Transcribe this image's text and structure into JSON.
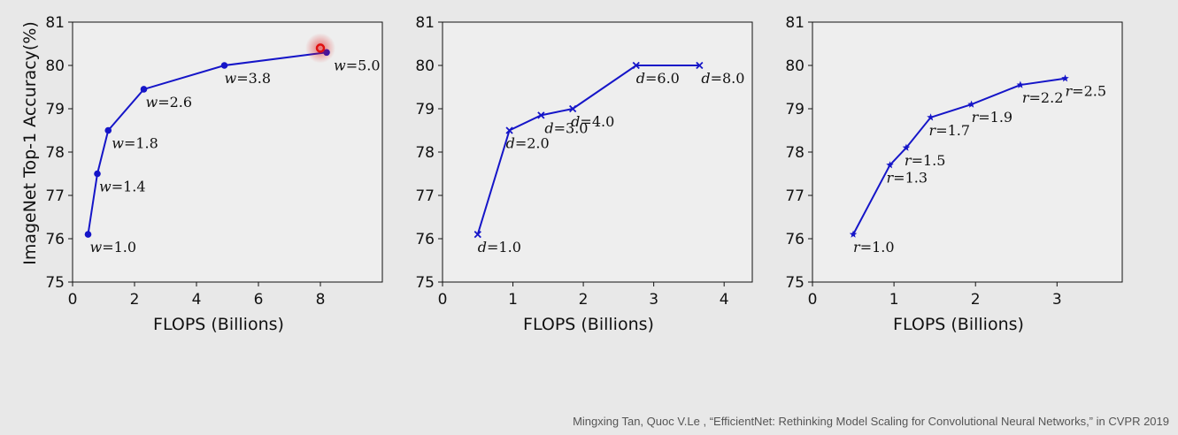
{
  "citation": "Mingxing Tan, Quoc V.Le , “EfficientNet: Rethinking Model Scaling for Convolutional Neural Networks,” in CVPR 2019",
  "colors": {
    "line": "#1515c8",
    "cursor": "#e01010"
  },
  "cursor": {
    "type": "pointer-highlight",
    "x": 8.0,
    "y": 80.4
  },
  "chart_data": [
    {
      "type": "line",
      "xlabel": "FLOPS (Billions)",
      "ylabel": "ImageNet Top-1 Accuracy(%)",
      "xlim": [
        0,
        10
      ],
      "ylim": [
        75,
        81
      ],
      "xticks": [
        "0",
        "2",
        "4",
        "6",
        "8"
      ],
      "yticks": [
        "75",
        "76",
        "77",
        "78",
        "79",
        "80",
        "81"
      ],
      "marker": "circle",
      "series": [
        {
          "x": [
            0.5,
            0.8,
            1.15,
            2.3,
            4.9,
            8.2
          ],
          "y": [
            76.1,
            77.5,
            78.5,
            79.45,
            80.0,
            80.3
          ],
          "labels": [
            {
              "var": "w",
              "val": "=1.0"
            },
            {
              "var": "w",
              "val": "=1.4"
            },
            {
              "var": "w",
              "val": "=1.8"
            },
            {
              "var": "w",
              "val": "=2.6"
            },
            {
              "var": "w",
              "val": "=3.8"
            },
            {
              "var": "w",
              "val": "=5.0"
            }
          ]
        }
      ]
    },
    {
      "type": "line",
      "xlabel": "FLOPS (Billions)",
      "ylabel": "",
      "xlim": [
        0,
        4.4
      ],
      "ylim": [
        75,
        81
      ],
      "xticks": [
        "0",
        "1",
        "2",
        "3",
        "4"
      ],
      "yticks": [
        "75",
        "76",
        "77",
        "78",
        "79",
        "80",
        "81"
      ],
      "marker": "x",
      "series": [
        {
          "x": [
            0.5,
            0.95,
            1.4,
            1.85,
            2.75,
            3.65
          ],
          "y": [
            76.1,
            78.5,
            78.85,
            79.0,
            80.0,
            80.0
          ],
          "labels": [
            {
              "var": "d",
              "val": "=1.0"
            },
            {
              "var": "d",
              "val": "=2.0"
            },
            {
              "var": "d",
              "val": "=3.0"
            },
            {
              "var": "d",
              "val": "=4.0"
            },
            {
              "var": "d",
              "val": "=6.0"
            },
            {
              "var": "d",
              "val": "=8.0"
            }
          ]
        }
      ]
    },
    {
      "type": "line",
      "xlabel": "FLOPS (Billions)",
      "ylabel": "",
      "xlim": [
        0,
        3.8
      ],
      "ylim": [
        75,
        81
      ],
      "xticks": [
        "0",
        "1",
        "2",
        "3"
      ],
      "yticks": [
        "75",
        "76",
        "77",
        "78",
        "79",
        "80",
        "81"
      ],
      "marker": "star",
      "series": [
        {
          "x": [
            0.5,
            0.95,
            1.15,
            1.45,
            1.95,
            2.55,
            3.1
          ],
          "y": [
            76.1,
            77.7,
            78.1,
            78.8,
            79.1,
            79.55,
            79.7
          ],
          "labels": [
            {
              "var": "r",
              "val": "=1.0"
            },
            {
              "var": "r",
              "val": "=1.3"
            },
            {
              "var": "r",
              "val": "=1.5"
            },
            {
              "var": "r",
              "val": "=1.7"
            },
            {
              "var": "r",
              "val": "=1.9"
            },
            {
              "var": "r",
              "val": "=2.2"
            },
            {
              "var": "r",
              "val": "=2.5"
            }
          ]
        }
      ]
    }
  ]
}
